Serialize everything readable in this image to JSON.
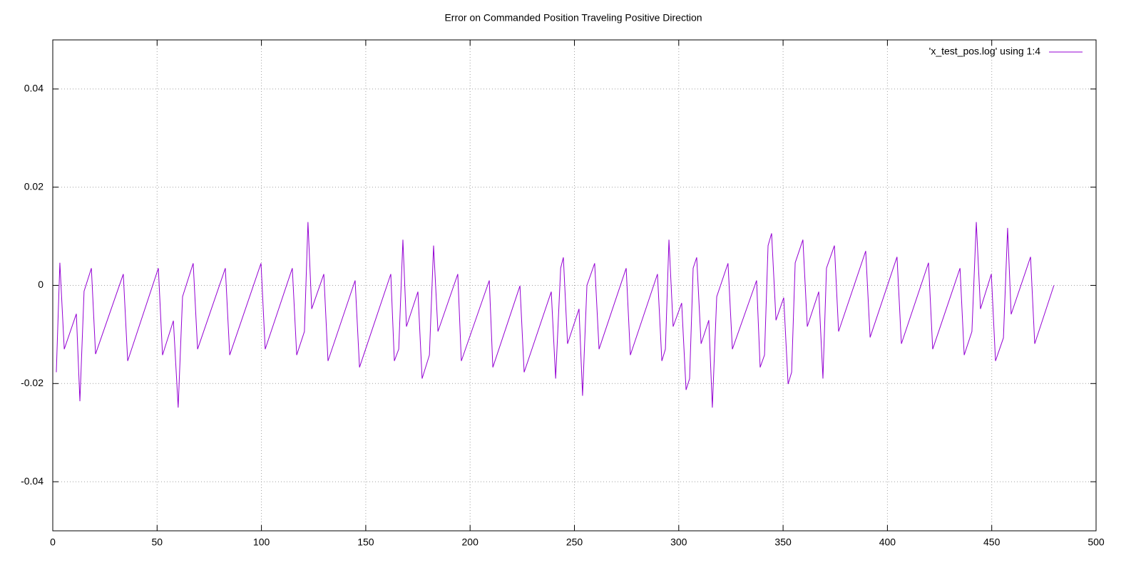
{
  "chart_data": {
    "type": "line",
    "title": "Error on Commanded Position Traveling Positive Direction",
    "x": [
      1.7,
      3.4,
      5.5,
      11.3,
      13,
      15,
      18.5,
      20.5,
      33.8,
      35.9,
      50.6,
      52.6,
      57.8,
      60.1,
      62.2,
      67.3,
      69.4,
      82.7,
      84.8,
      99.8,
      101.8,
      114.8,
      116.9,
      120.6,
      122.3,
      124.1,
      129.9,
      131.9,
      144.9,
      147,
      162,
      163.7,
      165.8,
      167.8,
      169.5,
      175,
      177,
      180.5,
      182.5,
      184.6,
      194.1,
      195.8,
      209.2,
      210.9,
      223.9,
      225.9,
      238.9,
      241,
      243.4,
      244.7,
      246.7,
      252.2,
      253.9,
      256,
      259.7,
      261.8,
      274.8,
      276.8,
      289.8,
      291.9,
      293.6,
      295.3,
      297.3,
      301.4,
      303.5,
      305.2,
      306.9,
      308.6,
      310.7,
      314.4,
      316.1,
      318.2,
      323.6,
      325.7,
      337.3,
      339,
      341.1,
      342.8,
      344.5,
      346.6,
      350.3,
      352.4,
      354.1,
      355.8,
      359.5,
      361.6,
      367.1,
      369.1,
      370.8,
      374.6,
      376.6,
      389.6,
      391.7,
      404.6,
      406.7,
      419.7,
      421.7,
      434.8,
      436.8,
      440.5,
      442.6,
      444.6,
      449.8,
      451.8,
      455.6,
      457.6,
      459.3,
      468.6,
      470.6,
      479.8
    ],
    "series": [
      {
        "name": "'x_test_pos.log' using 1:4",
        "color": "#9400d3",
        "values": [
          -0.0177,
          0.0046,
          -0.013,
          -0.0058,
          -0.0236,
          -0.0012,
          0.0035,
          -0.014,
          0.0023,
          -0.0154,
          0.0035,
          -0.0142,
          -0.0072,
          -0.0249,
          -0.0023,
          0.0045,
          -0.013,
          0.0035,
          -0.0142,
          0.0045,
          -0.013,
          0.0035,
          -0.0142,
          -0.0094,
          0.0129,
          -0.0048,
          0.0023,
          -0.0154,
          0.001,
          -0.0167,
          0.0023,
          -0.0154,
          -0.013,
          0.0093,
          -0.0084,
          -0.0013,
          -0.019,
          -0.0142,
          0.0081,
          -0.0094,
          0.0023,
          -0.0154,
          0.001,
          -0.0167,
          -0.0001,
          -0.0177,
          -0.0013,
          -0.019,
          0.0035,
          0.0057,
          -0.0119,
          -0.0048,
          -0.0225,
          0,
          0.0045,
          -0.013,
          0.0035,
          -0.0142,
          0.0023,
          -0.0154,
          -0.013,
          0.0093,
          -0.0084,
          -0.0036,
          -0.0213,
          -0.019,
          0.0035,
          0.0057,
          -0.0119,
          -0.0071,
          -0.0249,
          -0.0023,
          0.0045,
          -0.013,
          0.001,
          -0.0167,
          -0.0142,
          0.0081,
          0.0106,
          -0.0071,
          -0.0025,
          -0.0201,
          -0.0177,
          0.0046,
          0.0093,
          -0.0084,
          -0.0013,
          -0.019,
          0.0035,
          0.0081,
          -0.0094,
          0.007,
          -0.0106,
          0.0058,
          -0.0119,
          0.0046,
          -0.013,
          0.0035,
          -0.0142,
          -0.0094,
          0.0129,
          -0.0048,
          0.0023,
          -0.0154,
          -0.0107,
          0.0117,
          -0.0059,
          0.0058,
          -0.0119,
          0
        ]
      }
    ],
    "xlim": [
      0,
      500
    ],
    "xticks": [
      0,
      50,
      100,
      150,
      200,
      250,
      300,
      350,
      400,
      450,
      500
    ],
    "ylim": [
      -0.05,
      0.05
    ],
    "yticks": [
      -0.04,
      -0.02,
      0,
      0.02,
      0.04
    ],
    "grid": true,
    "legend": "top-right"
  }
}
